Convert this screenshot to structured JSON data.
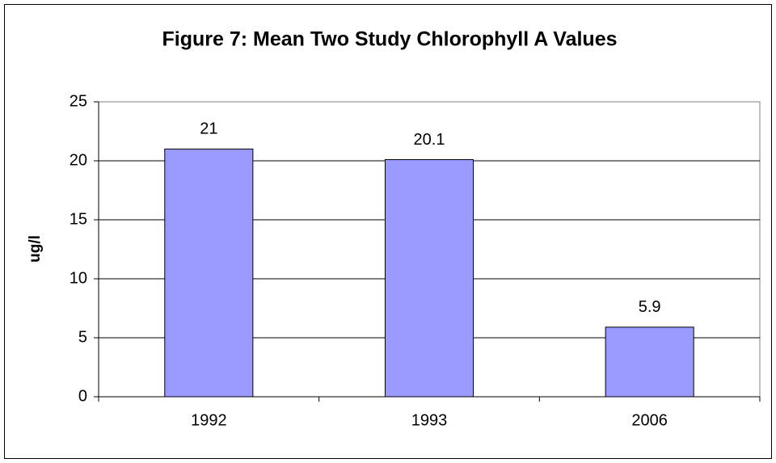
{
  "chart_data": {
    "type": "bar",
    "title": "Figure 7: Mean Two Study Chlorophyll A Values",
    "y_label": "ug/l",
    "categories": [
      "1992",
      "1993",
      "2006"
    ],
    "values": [
      21,
      20.1,
      5.9
    ],
    "color": "#9999ff",
    "ylim": [
      0,
      25
    ],
    "yticks": [
      0,
      5,
      10,
      15,
      20,
      25
    ],
    "grid": true
  }
}
